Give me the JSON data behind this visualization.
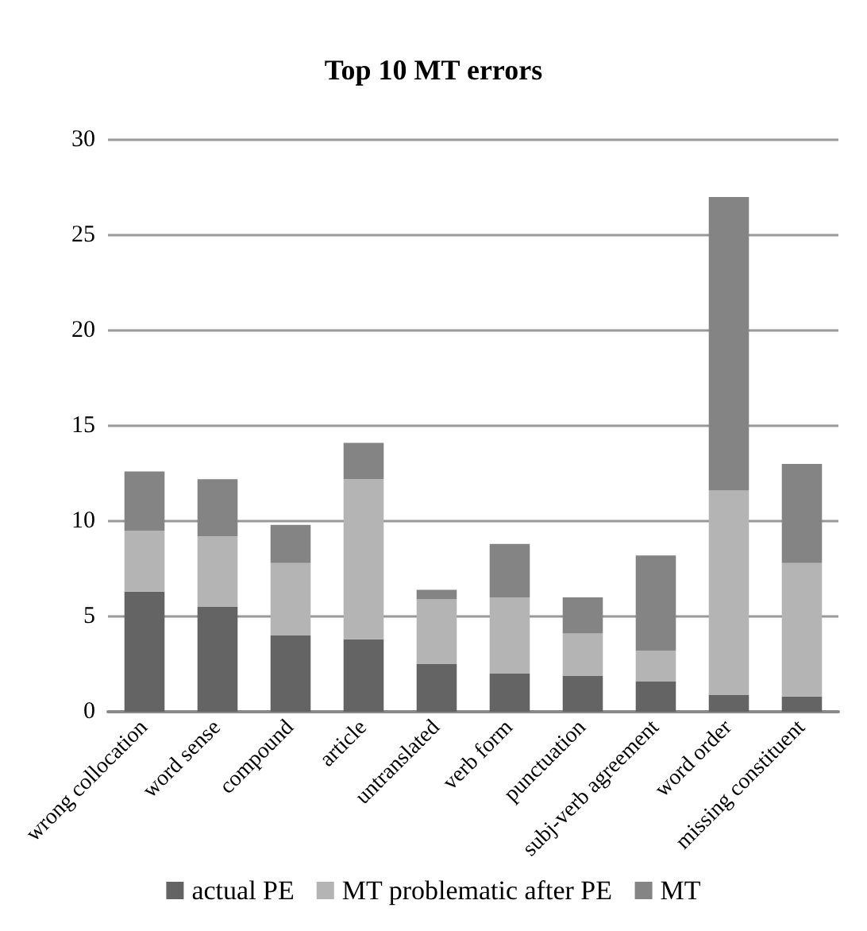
{
  "chart_data": {
    "type": "bar",
    "title": "Top 10 MT errors",
    "stacked": true,
    "categories": [
      "wrong collocation",
      "word sense",
      "compound",
      "article",
      "untranslated",
      "verb form",
      "punctuation",
      "subj-verb agreement",
      "word order",
      "missing constituent"
    ],
    "series": [
      {
        "name": "actual PE",
        "color": "#646464",
        "values": [
          6.3,
          5.5,
          4.0,
          3.8,
          2.5,
          2.0,
          1.9,
          1.6,
          0.9,
          0.8
        ]
      },
      {
        "name": "MT problematic after PE",
        "color": "#b4b4b4",
        "values": [
          3.2,
          3.7,
          3.8,
          8.4,
          3.4,
          4.0,
          2.2,
          1.6,
          10.7,
          7.0
        ]
      },
      {
        "name": "MT",
        "color": "#848484",
        "values": [
          3.1,
          3.0,
          2.0,
          1.9,
          0.5,
          2.8,
          1.9,
          5.0,
          15.4,
          5.2
        ]
      }
    ],
    "ylim": [
      0,
      30
    ],
    "yticks": [
      0,
      5,
      10,
      15,
      20,
      25,
      30
    ],
    "grid": "y",
    "legend": "bottom"
  }
}
